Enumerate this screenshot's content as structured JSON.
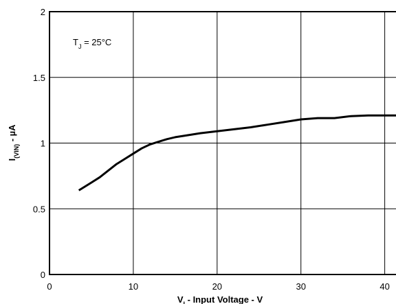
{
  "chart_data": {
    "type": "line",
    "title": "",
    "xlabel_main": "V",
    "xlabel_sub": "I",
    "xlabel_rest": " - Input Voltage - V",
    "ylabel_main": "I",
    "ylabel_sub": "(VIN)",
    "ylabel_rest": " - µA",
    "annotation_main": "T",
    "annotation_sub": "J",
    "annotation_rest": " = 25°C",
    "xlim": [
      0,
      42
    ],
    "ylim": [
      0,
      2
    ],
    "x_ticks": [
      0,
      10,
      20,
      30,
      40
    ],
    "x_tick_labels": [
      "0",
      "10",
      "20",
      "30",
      "40"
    ],
    "y_ticks": [
      0,
      0.5,
      1,
      1.5,
      2
    ],
    "y_tick_labels": [
      "0",
      "0.5",
      "1",
      "1.5",
      "2"
    ],
    "grid": true,
    "series": [
      {
        "x": [
          3.5,
          5,
          6,
          7,
          8,
          9,
          10,
          11,
          12,
          13,
          14,
          15,
          16,
          18,
          20,
          22,
          24,
          26,
          28,
          30,
          32,
          34,
          36,
          38,
          40,
          42
        ],
        "y": [
          0.64,
          0.7,
          0.74,
          0.79,
          0.84,
          0.88,
          0.92,
          0.96,
          0.99,
          1.01,
          1.03,
          1.045,
          1.055,
          1.075,
          1.09,
          1.105,
          1.12,
          1.14,
          1.16,
          1.18,
          1.19,
          1.19,
          1.205,
          1.21,
          1.21,
          1.21
        ],
        "color": "#000000"
      }
    ]
  }
}
